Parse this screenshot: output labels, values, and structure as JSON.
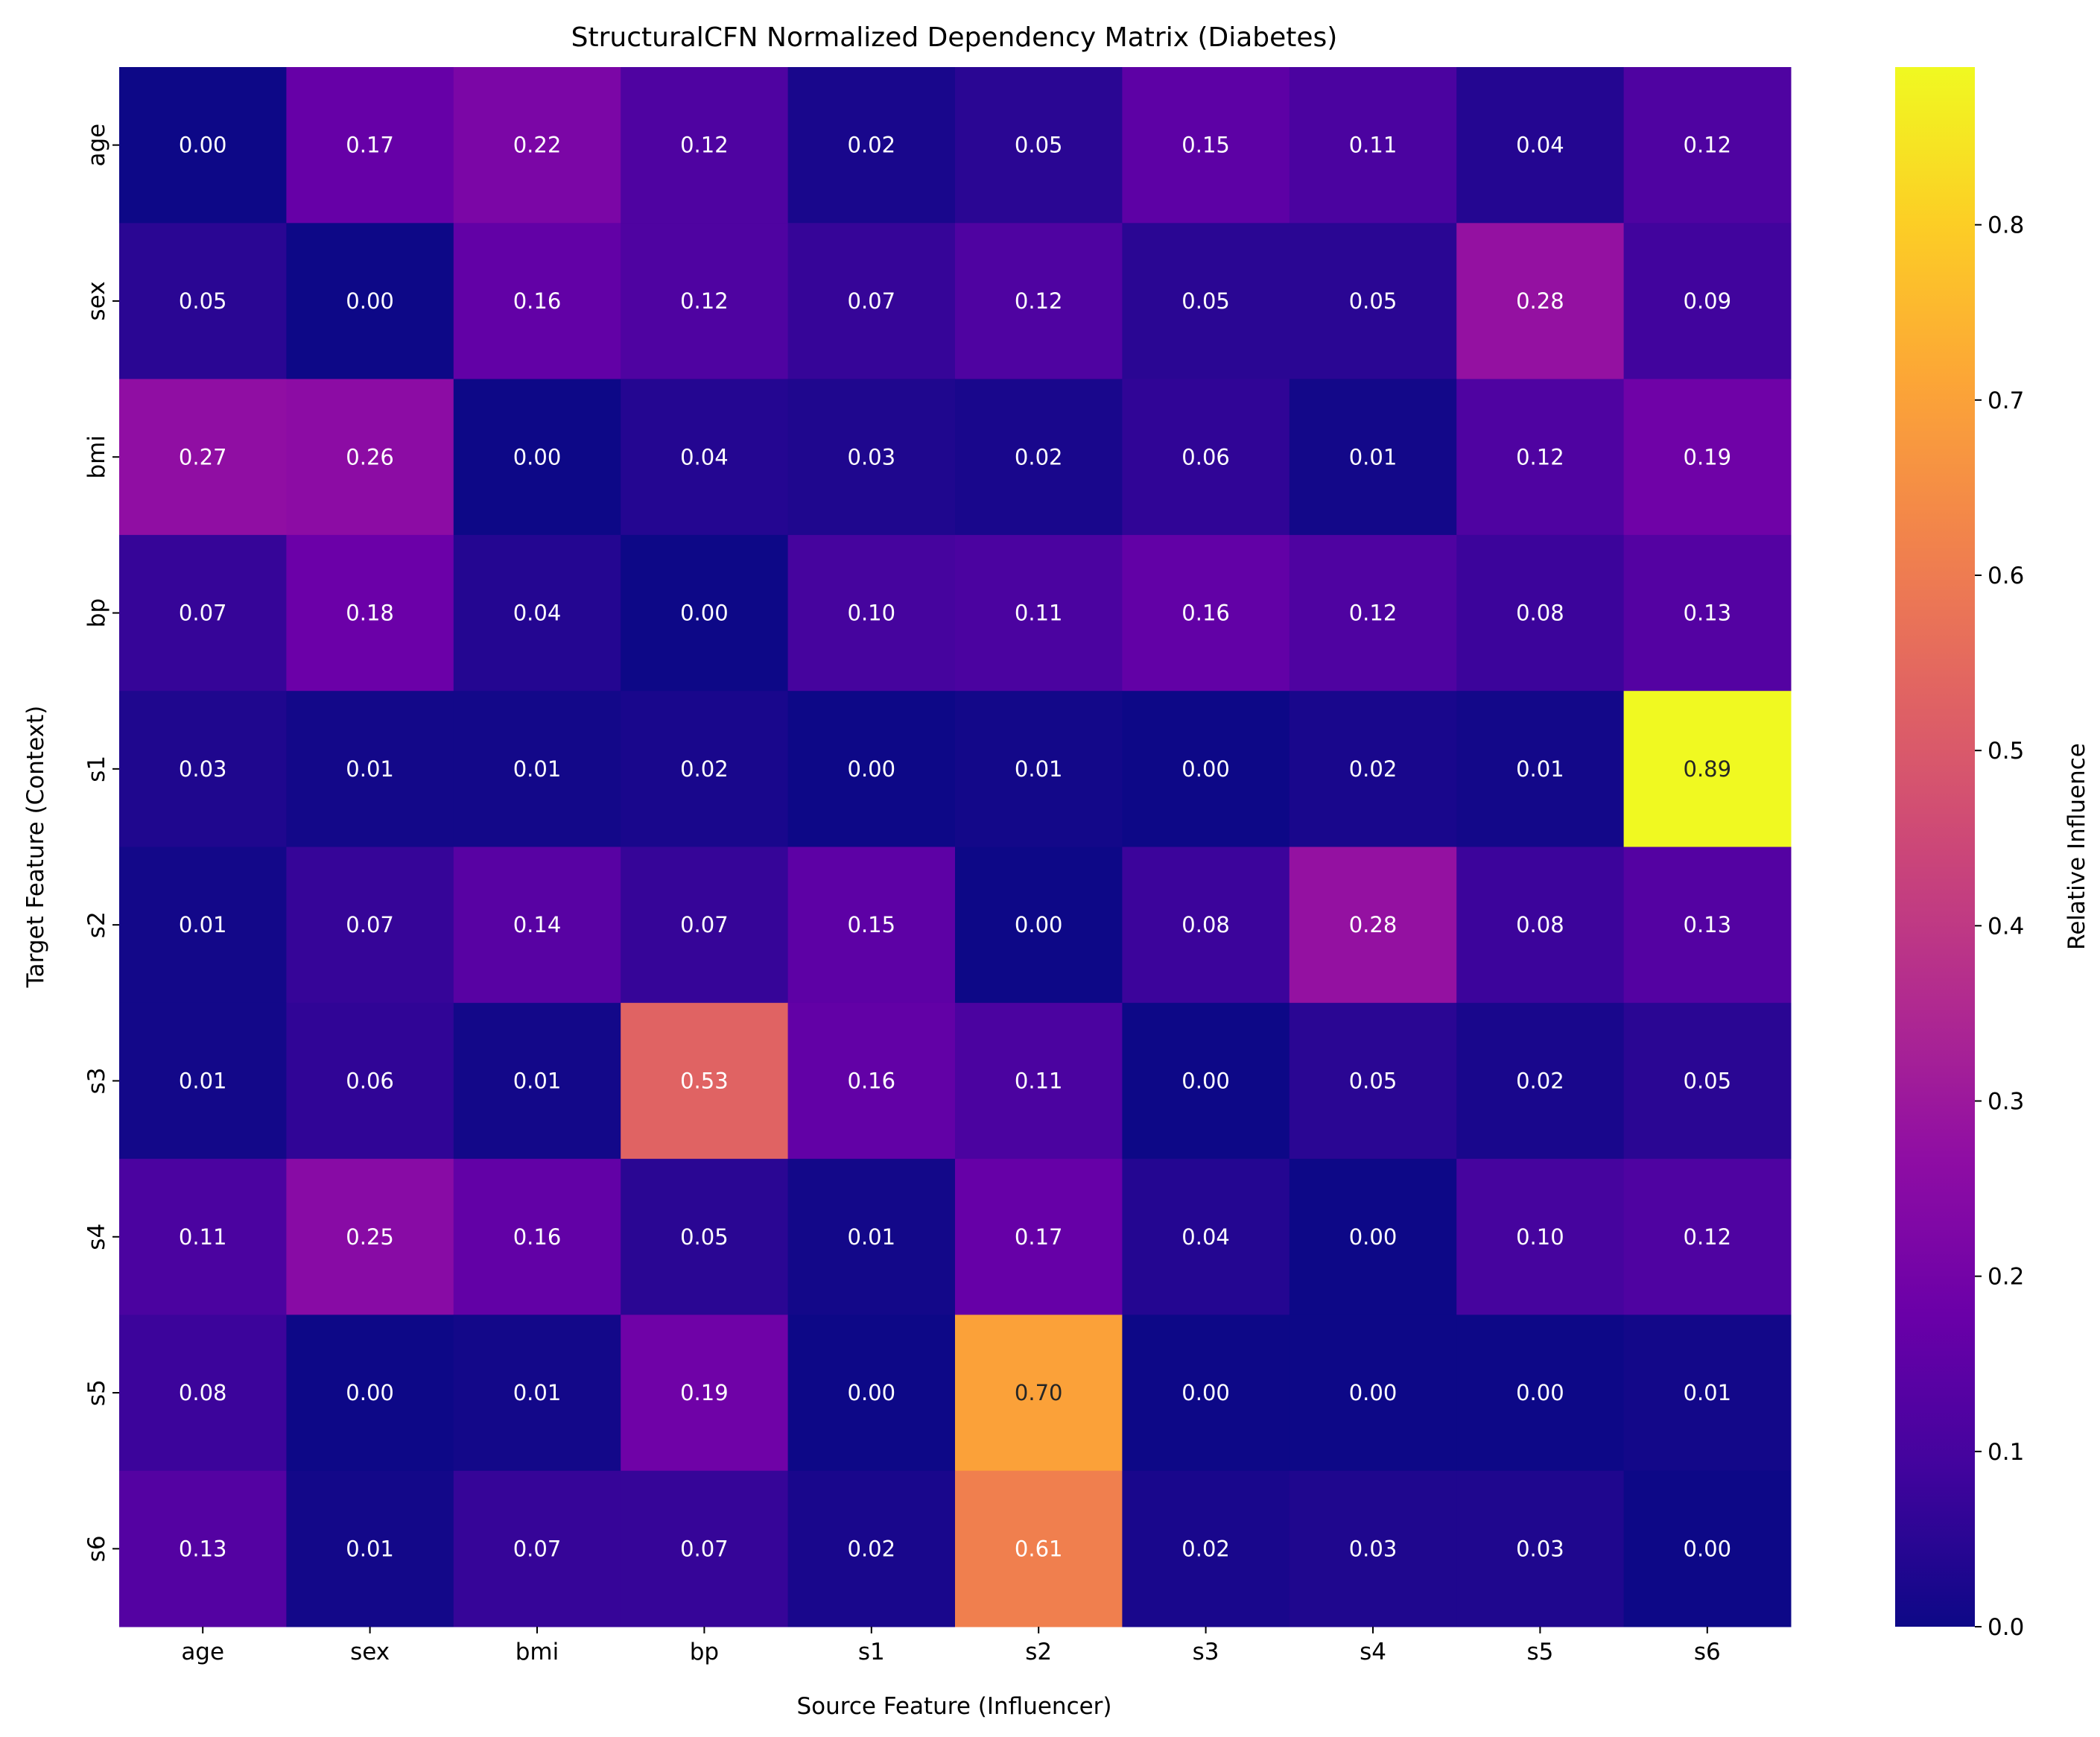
{
  "chart_data": {
    "type": "heatmap",
    "title": "StructuralCFN Normalized Dependency Matrix (Diabetes)",
    "xlabel": "Source Feature (Influencer)",
    "ylabel": "Target Feature (Context)",
    "x_categories": [
      "age",
      "sex",
      "bmi",
      "bp",
      "s1",
      "s2",
      "s3",
      "s4",
      "s5",
      "s6"
    ],
    "y_categories": [
      "age",
      "sex",
      "bmi",
      "bp",
      "s1",
      "s2",
      "s3",
      "s4",
      "s5",
      "s6"
    ],
    "values": [
      [
        0.0,
        0.17,
        0.22,
        0.12,
        0.02,
        0.05,
        0.15,
        0.11,
        0.04,
        0.12
      ],
      [
        0.05,
        0.0,
        0.16,
        0.12,
        0.07,
        0.12,
        0.05,
        0.05,
        0.28,
        0.09
      ],
      [
        0.27,
        0.26,
        0.0,
        0.04,
        0.03,
        0.02,
        0.06,
        0.01,
        0.12,
        0.19
      ],
      [
        0.07,
        0.18,
        0.04,
        0.0,
        0.1,
        0.11,
        0.16,
        0.12,
        0.08,
        0.13
      ],
      [
        0.03,
        0.01,
        0.01,
        0.02,
        0.0,
        0.01,
        0.0,
        0.02,
        0.01,
        0.89
      ],
      [
        0.01,
        0.07,
        0.14,
        0.07,
        0.15,
        0.0,
        0.08,
        0.28,
        0.08,
        0.13
      ],
      [
        0.01,
        0.06,
        0.01,
        0.53,
        0.16,
        0.11,
        0.0,
        0.05,
        0.02,
        0.05
      ],
      [
        0.11,
        0.25,
        0.16,
        0.05,
        0.01,
        0.17,
        0.04,
        0.0,
        0.1,
        0.12
      ],
      [
        0.08,
        0.0,
        0.01,
        0.19,
        0.0,
        0.7,
        0.0,
        0.0,
        0.0,
        0.01
      ],
      [
        0.13,
        0.01,
        0.07,
        0.07,
        0.02,
        0.61,
        0.02,
        0.03,
        0.03,
        0.0
      ]
    ],
    "colormap": "plasma",
    "vmin": 0.0,
    "vmax": 0.89,
    "colorbar": {
      "label": "Relative Influence",
      "ticks": [
        "0.0",
        "0.1",
        "0.2",
        "0.3",
        "0.4",
        "0.5",
        "0.6",
        "0.7",
        "0.8"
      ]
    },
    "grid": false,
    "annotations": true
  }
}
